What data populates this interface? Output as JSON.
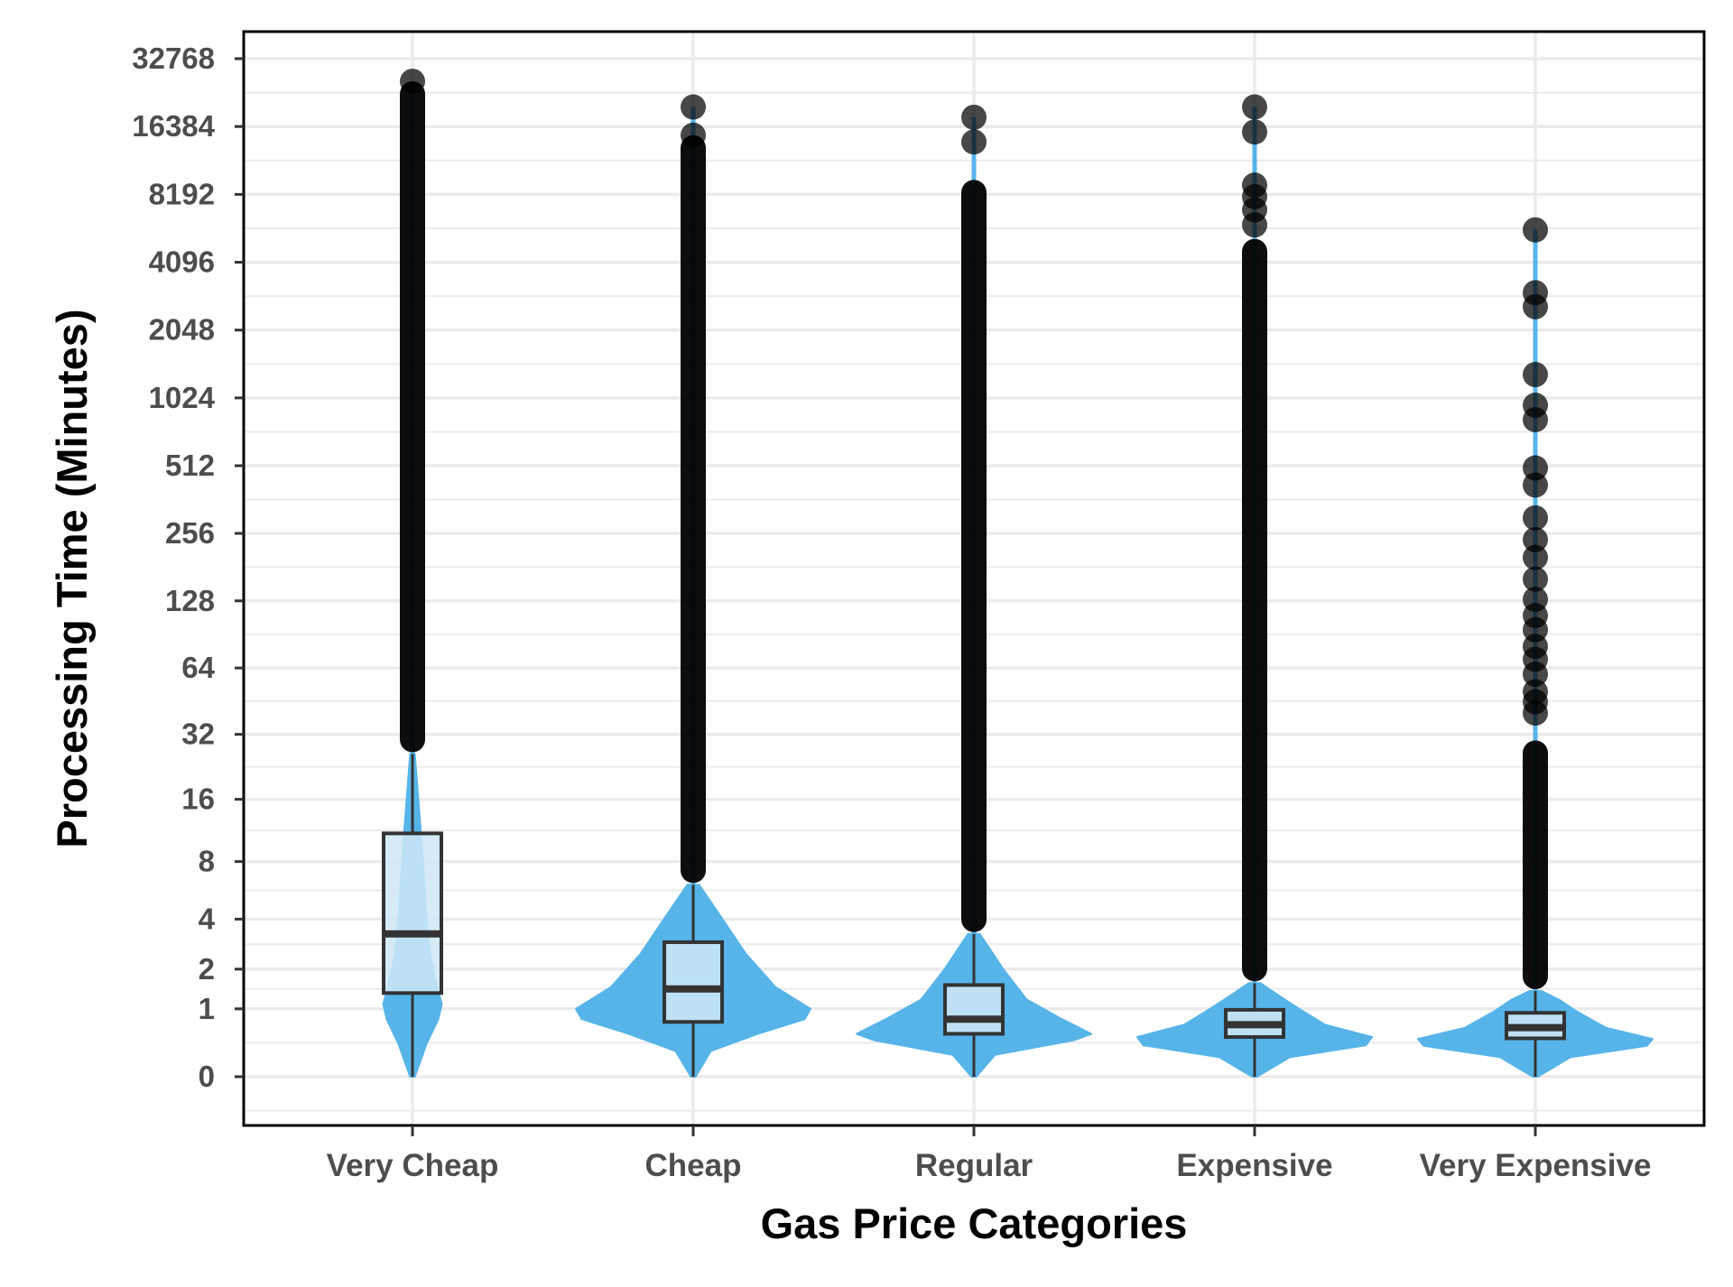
{
  "chart_data": {
    "type": "violin",
    "title": "",
    "xlabel": "Gas Price Categories",
    "ylabel": "Processing Time (Minutes)",
    "y_scale": "pseudo-log2",
    "y_ticks": [
      0,
      1,
      2,
      4,
      8,
      16,
      32,
      64,
      128,
      256,
      512,
      1024,
      2048,
      4096,
      8192,
      16384,
      32768
    ],
    "ylim": [
      -0.5,
      32768
    ],
    "grid": true,
    "colors": {
      "violin": "#56b4e9",
      "box_fill": "#cfe7f6",
      "box_stroke": "#333333",
      "outlier": "#000000",
      "grid": "#ebebeb",
      "frame": "#000000"
    },
    "categories": [
      "Very Cheap",
      "Cheap",
      "Regular",
      "Expensive",
      "Very Expensive"
    ],
    "series": [
      {
        "category": "Very Cheap",
        "box": {
          "q1": 1.35,
          "median": 3.3,
          "q3": 11
        },
        "whisker": [
          0,
          26
        ],
        "violin_profile": [
          [
            0,
            0.02
          ],
          [
            0.4,
            0.12
          ],
          [
            0.8,
            0.22
          ],
          [
            1.1,
            0.25
          ],
          [
            1.5,
            0.21
          ],
          [
            2.5,
            0.15
          ],
          [
            4,
            0.12
          ],
          [
            8,
            0.09
          ],
          [
            16,
            0.05
          ],
          [
            26,
            0.02
          ]
        ],
        "outliers_continuous_to": 26000,
        "outlier_points": [
          26000
        ]
      },
      {
        "category": "Cheap",
        "box": {
          "q1": 0.75,
          "median": 1.45,
          "q3": 2.95
        },
        "whisker": [
          0,
          6.1
        ],
        "violin_profile": [
          [
            0,
            0.02
          ],
          [
            0.3,
            0.15
          ],
          [
            0.55,
            0.55
          ],
          [
            0.8,
            0.95
          ],
          [
            1,
            1.0
          ],
          [
            1.5,
            0.7
          ],
          [
            2.5,
            0.45
          ],
          [
            4,
            0.25
          ],
          [
            6.1,
            0.05
          ]
        ],
        "outliers_continuous_to": 15000,
        "outlier_points": [
          20000,
          15000
        ]
      },
      {
        "category": "Regular",
        "box": {
          "q1": 0.55,
          "median": 0.8,
          "q3": 1.55
        },
        "whisker": [
          0,
          3.3
        ],
        "violin_profile": [
          [
            0,
            0.02
          ],
          [
            0.25,
            0.18
          ],
          [
            0.45,
            0.85
          ],
          [
            0.55,
            1.0
          ],
          [
            0.8,
            0.75
          ],
          [
            1.2,
            0.45
          ],
          [
            2,
            0.25
          ],
          [
            3.3,
            0.05
          ]
        ],
        "outliers_continuous_to": 9500,
        "outlier_points": [
          18000,
          14000
        ]
      },
      {
        "category": "Expensive",
        "box": {
          "q1": 0.5,
          "median": 0.7,
          "q3": 0.98
        },
        "whisker": [
          0,
          1.6
        ],
        "violin_profile": [
          [
            0,
            0.02
          ],
          [
            0.22,
            0.3
          ],
          [
            0.38,
            0.95
          ],
          [
            0.5,
            1.0
          ],
          [
            0.7,
            0.6
          ],
          [
            1.0,
            0.38
          ],
          [
            1.3,
            0.2
          ],
          [
            1.6,
            0.05
          ]
        ],
        "outliers_continuous_to": 5200,
        "outlier_points": [
          20000,
          15500,
          9000,
          8000,
          7000,
          6000
        ]
      },
      {
        "category": "Very Expensive",
        "box": {
          "q1": 0.48,
          "median": 0.65,
          "q3": 0.92
        },
        "whisker": [
          0,
          1.4
        ],
        "violin_profile": [
          [
            0,
            0.02
          ],
          [
            0.22,
            0.3
          ],
          [
            0.37,
            0.95
          ],
          [
            0.47,
            1.0
          ],
          [
            0.65,
            0.6
          ],
          [
            0.95,
            0.35
          ],
          [
            1.2,
            0.2
          ],
          [
            1.4,
            0.05
          ]
        ],
        "outliers_continuous_to": 30,
        "outlier_points": [
          5700,
          3000,
          2600,
          1300,
          950,
          820,
          500,
          420,
          300,
          240,
          200,
          160,
          130,
          110,
          95,
          80,
          70,
          60,
          50,
          45,
          40
        ]
      }
    ]
  }
}
